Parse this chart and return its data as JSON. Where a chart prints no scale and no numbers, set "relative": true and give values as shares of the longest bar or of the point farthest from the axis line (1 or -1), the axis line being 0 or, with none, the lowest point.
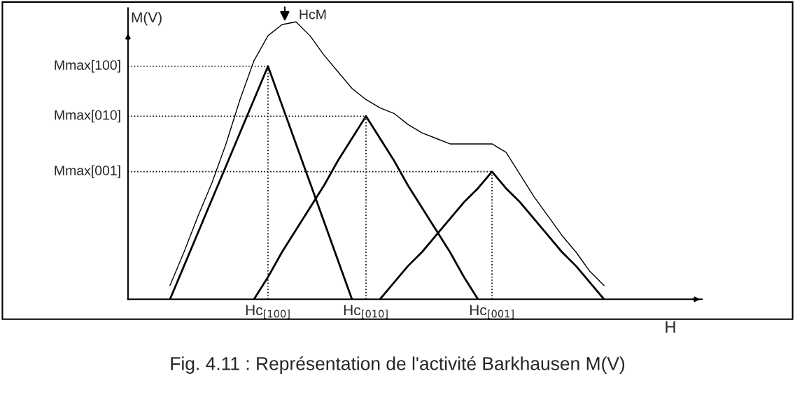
{
  "chart_data": {
    "type": "line",
    "relative": true,
    "xlabel": "H",
    "ylabel": "M(V)",
    "categories": [
      null,
      null,
      null,
      null,
      null,
      null,
      null,
      null,
      null,
      null,
      "Hc$_{[100]}$",
      null,
      null,
      null,
      null,
      null,
      null,
      "Hc$_{[010]}$",
      null,
      null,
      null,
      null,
      null,
      null,
      null,
      null,
      "Hc$_{[001]}$",
      null,
      null,
      null,
      null,
      null,
      null,
      null,
      null,
      null,
      null,
      null,
      null,
      null,
      null,
      null
    ],
    "series": [
      {
        "color": "#000000",
        "values": [
          null,
          null,
          null,
          0,
          0.12,
          0.24,
          0.36,
          0.48,
          0.6,
          0.72,
          0.84,
          0.7,
          0.56,
          0.42,
          0.28,
          0.14,
          0,
          null,
          null,
          null,
          null,
          null,
          null,
          null,
          null,
          null,
          null,
          null,
          null,
          null,
          null,
          null,
          null,
          null,
          null,
          null,
          null,
          null,
          null,
          null,
          null,
          null
        ]
      },
      {
        "color": "#000000",
        "values": [
          null,
          null,
          null,
          null,
          null,
          null,
          null,
          null,
          null,
          0,
          0.08,
          0.17,
          0.25,
          0.33,
          0.41,
          0.5,
          0.58,
          0.66,
          0.58,
          0.5,
          0.41,
          0.33,
          0.25,
          0.17,
          0.08,
          0,
          null,
          null,
          null,
          null,
          null,
          null,
          null,
          null,
          null,
          null,
          null,
          null,
          null,
          null,
          null,
          null
        ]
      },
      {
        "color": "#000000",
        "values": [
          null,
          null,
          null,
          null,
          null,
          null,
          null,
          null,
          null,
          null,
          null,
          null,
          null,
          null,
          null,
          null,
          null,
          null,
          0,
          0.06,
          0.12,
          0.17,
          0.23,
          0.29,
          0.35,
          0.4,
          0.46,
          0.4,
          0.35,
          0.29,
          0.23,
          0.17,
          0.12,
          0.06,
          0,
          null,
          null,
          null,
          null,
          null,
          null,
          null
        ]
      },
      {
        "color": "#000000",
        "values": [
          null,
          null,
          null,
          0.05,
          0.17,
          0.3,
          0.42,
          0.56,
          0.72,
          0.86,
          0.95,
          0.99,
          1.0,
          0.95,
          0.88,
          0.82,
          0.76,
          0.72,
          0.69,
          0.67,
          0.63,
          0.6,
          0.58,
          0.56,
          0.56,
          0.56,
          0.56,
          0.53,
          0.45,
          0.37,
          0.3,
          0.23,
          0.17,
          0.1,
          0.05,
          null,
          null,
          null,
          null,
          null,
          null,
          null
        ]
      }
    ],
    "ref_lines": [
      {
        "axis": "y",
        "value": 0.84,
        "label": "Mmax[100]",
        "line_style": "dotted"
      },
      {
        "axis": "y",
        "value": 0.66,
        "label": "Mmax[010]",
        "line_style": "dotted"
      },
      {
        "axis": "y",
        "value": 0.46,
        "label": "Mmax[001]",
        "line_style": "dotted"
      },
      {
        "axis": "x",
        "value": "Hc$_{[100]}$",
        "line_style": "dotted"
      },
      {
        "axis": "x",
        "value": "Hc$_{[010]}$",
        "line_style": "dotted"
      },
      {
        "axis": "x",
        "value": "Hc$_{[001]}$",
        "line_style": "dotted"
      }
    ],
    "annotations": [
      "HcM",
      "Fig. 4.11 : Représentation de l'activité Barkhausen M(V)"
    ],
    "grid": false,
    "legend": false,
    "marker": "none",
    "line_style": "solid"
  }
}
